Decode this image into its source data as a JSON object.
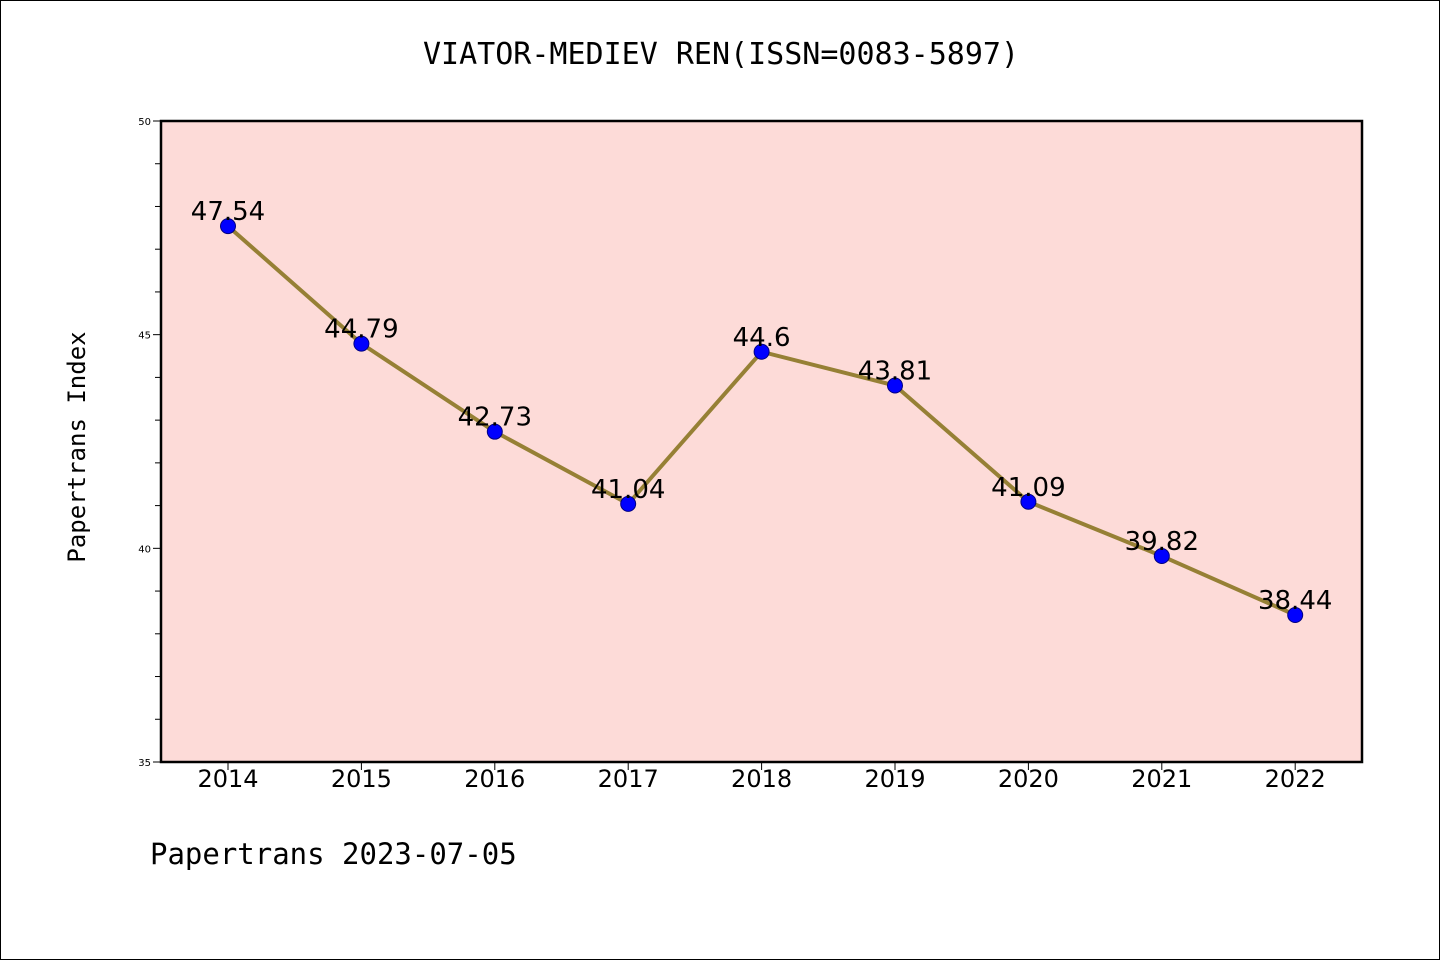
{
  "header": {
    "title": "VIATOR-MEDIEV REN(ISSN=0083-5897)"
  },
  "footer": {
    "text": "Papertrans 2023-07-05"
  },
  "chart_data": {
    "type": "line",
    "title": "VIATOR-MEDIEV REN(ISSN=0083-5897)",
    "xlabel": "",
    "ylabel": "Papertrans Index",
    "categories": [
      "2014",
      "2015",
      "2016",
      "2017",
      "2018",
      "2019",
      "2020",
      "2021",
      "2022"
    ],
    "series": [
      {
        "values": [
          47.54,
          44.79,
          42.73,
          41.04,
          44.6,
          43.81,
          41.09,
          39.82,
          38.44
        ]
      }
    ],
    "data_labels": [
      "47.54",
      "44.79",
      "42.73",
      "41.04",
      "44.6",
      "43.81",
      "41.09",
      "39.82",
      "38.44"
    ],
    "ylim": [
      35,
      50
    ],
    "yticks": [
      35,
      40,
      45,
      50
    ],
    "grid": false,
    "legend": "none",
    "colors": {
      "plot_background": "#fddbd8",
      "line": "#968035",
      "marker": "#0000ff",
      "frame": "#000000"
    }
  }
}
